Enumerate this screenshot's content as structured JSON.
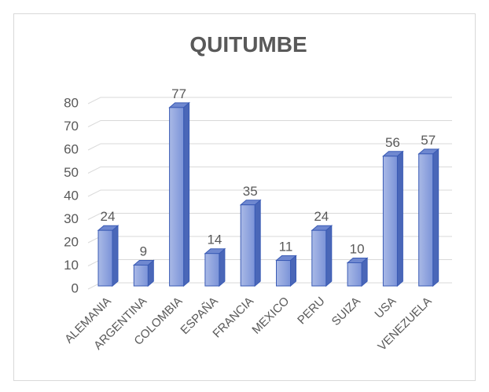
{
  "chart_data": {
    "type": "bar",
    "title": "QUITUMBE",
    "categories": [
      "ALEMANIA",
      "ARGENTINA",
      "COLOMBIA",
      "ESPAÑA",
      "FRANCIA",
      "MEXICO",
      "PERU",
      "SUIZA",
      "USA",
      "VENEZUELA"
    ],
    "values": [
      24,
      9,
      77,
      14,
      35,
      11,
      24,
      10,
      56,
      57
    ],
    "color": "#8ea3dd",
    "ylim": [
      0,
      80
    ],
    "yticks": [
      0,
      10,
      20,
      30,
      40,
      50,
      60,
      70,
      80
    ],
    "grid": true
  }
}
